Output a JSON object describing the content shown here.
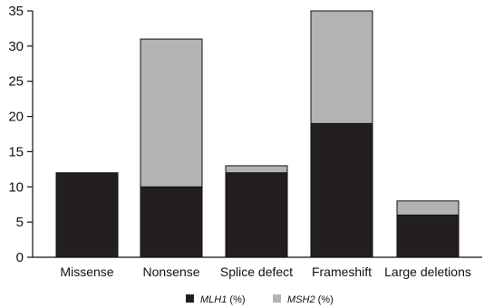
{
  "chart_data": {
    "type": "bar",
    "stacked": true,
    "categories": [
      "Missense",
      "Nonsense",
      "Splice defect",
      "Frameshift",
      "Large deletions"
    ],
    "series": [
      {
        "name": "MLH1",
        "unit": "(%)",
        "color": "#231f20",
        "values": [
          12,
          10,
          12,
          19,
          6
        ]
      },
      {
        "name": "MSH2",
        "unit": "(%)",
        "color": "#b3b3b3",
        "values": [
          0,
          21,
          1,
          16,
          2
        ]
      }
    ],
    "ylim": [
      0,
      35
    ],
    "yticks": [
      0,
      5,
      10,
      15,
      20,
      25,
      30,
      35
    ],
    "legend_position": "bottom-center",
    "grid": false
  }
}
